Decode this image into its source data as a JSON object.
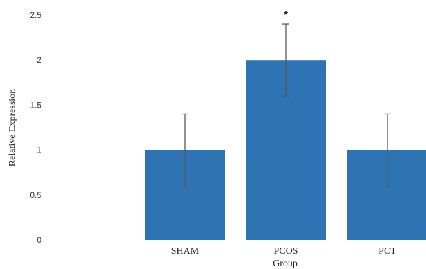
{
  "chart_data": {
    "type": "bar",
    "categories": [
      "SHAM",
      "PCOS",
      "PCT"
    ],
    "values": [
      1.0,
      2.0,
      1.0
    ],
    "error_bars": [
      0.4,
      0.4,
      0.4
    ],
    "annotations": [
      "",
      "*",
      ""
    ],
    "xlabel": "Group",
    "ylabel": "Relative Expression",
    "ylim": [
      0,
      2.5
    ],
    "yticks": [
      0,
      0.5,
      1,
      1.5,
      2,
      2.5
    ],
    "ytick_labels": [
      "0",
      "0.5",
      "1",
      "1.5",
      "2",
      "2.5"
    ],
    "grid": false,
    "bar_color": "#2e74b5",
    "error_bar_color": "#595959"
  }
}
